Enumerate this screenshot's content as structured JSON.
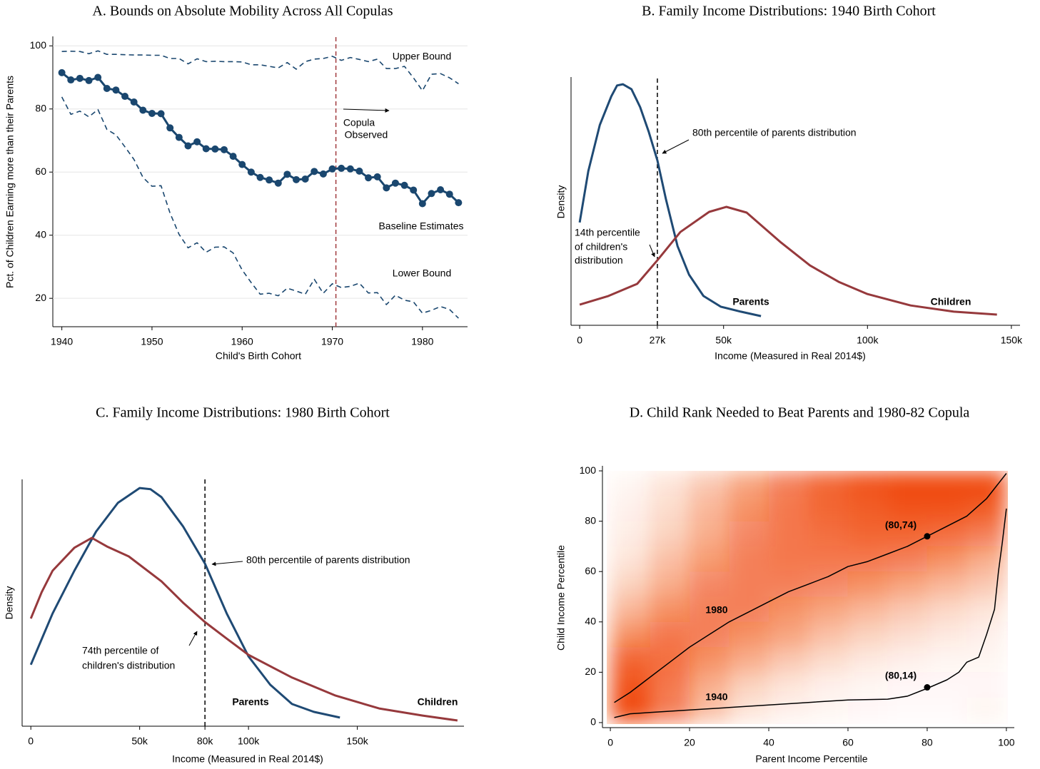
{
  "chart_data": [
    {
      "type": "line",
      "title": "A. Bounds on Absolute Mobility Across All Copulas",
      "x_label": "Child's Birth Cohort",
      "y_label": "Pct. of Children Earning more than their Parents",
      "x": [
        1940,
        1941,
        1942,
        1943,
        1944,
        1945,
        1946,
        1947,
        1948,
        1949,
        1950,
        1951,
        1952,
        1953,
        1954,
        1955,
        1956,
        1957,
        1958,
        1959,
        1960,
        1961,
        1962,
        1963,
        1964,
        1965,
        1966,
        1967,
        1968,
        1969,
        1970,
        1971,
        1972,
        1973,
        1974,
        1975,
        1976,
        1977,
        1978,
        1979,
        1980,
        1981,
        1982,
        1983,
        1984
      ],
      "series": [
        {
          "name": "Upper Bound",
          "color": "#1a476f",
          "line_style": "dashed",
          "values": [
            98.2,
            98.3,
            98.2,
            97.5,
            98.4,
            97.3,
            97.3,
            97.2,
            97.1,
            97.1,
            97.0,
            97.0,
            96.0,
            96.0,
            94.3,
            95.9,
            95.0,
            95.1,
            95.0,
            95.0,
            94.9,
            94.0,
            94.0,
            93.5,
            93.0,
            94.7,
            92.6,
            95.0,
            95.8,
            96.0,
            96.7,
            95.4,
            96.3,
            95.7,
            95.0,
            95.8,
            92.8,
            92.8,
            93.5,
            89.9,
            85.8,
            91.0,
            91.2,
            89.9,
            88.0
          ]
        },
        {
          "name": "Baseline Estimates",
          "color": "#1a476f",
          "line_style": "solid",
          "marker": true,
          "values": [
            91.5,
            89.2,
            89.7,
            89.0,
            90.0,
            86.5,
            86.0,
            84.0,
            82.2,
            79.6,
            78.6,
            78.5,
            74.0,
            71.0,
            68.3,
            69.6,
            67.4,
            67.3,
            67.1,
            65.0,
            62.4,
            60.0,
            58.3,
            57.5,
            56.5,
            59.3,
            57.6,
            57.8,
            60.2,
            59.4,
            61.0,
            61.2,
            61.0,
            60.3,
            58.2,
            58.5,
            55.0,
            56.5,
            55.8,
            54.3,
            50.0,
            53.2,
            54.4,
            53.0,
            50.3
          ]
        },
        {
          "name": "Lower Bound",
          "color": "#1a476f",
          "line_style": "dashed",
          "values": [
            83.8,
            78.3,
            79.3,
            77.5,
            79.8,
            73.5,
            71.8,
            68.0,
            64.0,
            58.3,
            55.5,
            55.7,
            47.0,
            40.3,
            36.0,
            37.6,
            34.6,
            36.2,
            36.3,
            34.4,
            29.0,
            25.0,
            21.3,
            21.6,
            20.8,
            23.2,
            22.3,
            21.3,
            26.0,
            21.6,
            24.6,
            23.4,
            23.8,
            24.8,
            21.7,
            21.8,
            18.0,
            21.0,
            19.4,
            18.9,
            15.3,
            16.2,
            17.4,
            16.5,
            13.7
          ]
        }
      ],
      "xlim": [
        1939,
        1985
      ],
      "ylim": [
        11,
        103
      ],
      "xticks": [
        1940,
        1950,
        1960,
        1970,
        1980
      ],
      "yticks": [
        20,
        40,
        60,
        80,
        100
      ],
      "grid": true,
      "vline": 1970.4,
      "vline_color": "#a0393c",
      "annotations": [
        "Copula",
        "Observed"
      ]
    },
    {
      "type": "line",
      "title": "B. Family Income Distributions: 1940 Birth Cohort",
      "x_label": "Income (Measured in Real 2014$)",
      "y_label": "Density",
      "series": [
        {
          "name": "Parents",
          "color": "#1f4a74",
          "line_style": "solid",
          "x": [
            0,
            3,
            7,
            11,
            13,
            15,
            18,
            21,
            24,
            27,
            30,
            34,
            38,
            43,
            49,
            56,
            63
          ],
          "values": [
            41.4,
            62.1,
            80.7,
            92.2,
            96.6,
            97.1,
            95.1,
            87.9,
            77.9,
            66.4,
            50.6,
            31.9,
            20.4,
            11.8,
            7.5,
            5.5,
            3.7
          ]
        },
        {
          "name": "Children",
          "color": "#96393c",
          "line_style": "solid",
          "x": [
            0,
            10,
            20,
            27,
            35,
            45,
            51,
            58,
            70,
            80,
            90,
            100,
            115,
            130,
            145
          ],
          "values": [
            8.3,
            11.8,
            16.7,
            26.2,
            37.6,
            45.7,
            47.7,
            45.4,
            33.3,
            24.1,
            17.5,
            12.6,
            8.0,
            5.5,
            4.3
          ]
        }
      ],
      "xlim": [
        -3,
        153
      ],
      "ylim": [
        0,
        100
      ],
      "xticks": [
        0,
        {
          "value": 27,
          "label": "27k"
        },
        {
          "value": 50,
          "label": "50k"
        },
        {
          "value": 100,
          "label": "100k"
        },
        {
          "value": 150,
          "label": "150k"
        }
      ],
      "grid": false,
      "vline": 27,
      "vline_color": "#000000",
      "annotations": [
        "80th percentile of parents distribution",
        "14th percentile",
        "of children's",
        "distribution"
      ]
    },
    {
      "type": "line",
      "title": "C. Family Income Distributions: 1980 Birth Cohort",
      "x_label": "Income (Measured in Real 2014$)",
      "y_label": "Density",
      "series": [
        {
          "name": "Parents",
          "color": "#1f4a74",
          "line_style": "solid",
          "x": [
            0,
            10,
            20,
            30,
            40,
            50,
            55,
            60,
            70,
            80,
            90,
            100,
            110,
            120,
            130,
            142
          ],
          "values": [
            24.9,
            45.7,
            63.0,
            78.9,
            90.5,
            96.5,
            96.0,
            92.8,
            80.9,
            65.9,
            45.7,
            28.3,
            16.8,
            9.0,
            5.8,
            3.5
          ]
        },
        {
          "name": "Children",
          "color": "#96393c",
          "line_style": "solid",
          "x": [
            0,
            5,
            10,
            20,
            28,
            35,
            45,
            60,
            70,
            80,
            90,
            100,
            120,
            140,
            160,
            180,
            196
          ],
          "values": [
            43.6,
            54.3,
            63.0,
            72.3,
            76.3,
            72.8,
            68.8,
            58.7,
            50.0,
            42.2,
            35.5,
            28.9,
            19.7,
            12.4,
            7.2,
            4.3,
            2.3
          ]
        }
      ],
      "xlim": [
        -4,
        199
      ],
      "ylim": [
        0,
        100
      ],
      "xticks": [
        0,
        {
          "value": 50,
          "label": "50k"
        },
        {
          "value": 80,
          "label": "80k"
        },
        {
          "value": 100,
          "label": "100k"
        },
        {
          "value": 150,
          "label": "150k"
        }
      ],
      "grid": false,
      "vline": 80,
      "vline_color": "#000000",
      "annotations": [
        "80th percentile of parents distribution",
        "74th percentile of",
        "children's distribution"
      ]
    },
    {
      "type": "heatmap",
      "title": "D. Child Rank Needed to Beat Parents and 1980-82 Copula",
      "x_label": "Parent Income Percentile",
      "y_label": "Child Income Percentile",
      "color": "#f04a0a",
      "bins": [
        0,
        10,
        20,
        30,
        40,
        50,
        60,
        70,
        80,
        90,
        100
      ],
      "z": [
        [
          100,
          70,
          35,
          15,
          8,
          5,
          3,
          2,
          2,
          5
        ],
        [
          95,
          75,
          45,
          25,
          15,
          8,
          5,
          3,
          3,
          3
        ],
        [
          85,
          80,
          60,
          45,
          30,
          20,
          12,
          8,
          5,
          5
        ],
        [
          60,
          75,
          70,
          60,
          50,
          35,
          25,
          18,
          12,
          8
        ],
        [
          40,
          60,
          70,
          70,
          60,
          50,
          40,
          30,
          22,
          15
        ],
        [
          25,
          45,
          65,
          70,
          70,
          65,
          60,
          50,
          40,
          30
        ],
        [
          15,
          35,
          55,
          70,
          75,
          75,
          75,
          70,
          60,
          45
        ],
        [
          10,
          25,
          45,
          65,
          75,
          80,
          85,
          85,
          80,
          70
        ],
        [
          8,
          20,
          40,
          60,
          75,
          85,
          90,
          95,
          95,
          90
        ],
        [
          5,
          15,
          30,
          50,
          70,
          85,
          95,
          100,
          100,
          100
        ]
      ],
      "series": [
        {
          "name": "1980",
          "color": "#000000",
          "line_style": "solid",
          "x": [
            1,
            5,
            10,
            15,
            20,
            25,
            30,
            35,
            40,
            45,
            50,
            55,
            60,
            65,
            70,
            75,
            80,
            85,
            90,
            95,
            100
          ],
          "values": [
            8,
            12,
            18,
            24,
            30,
            35,
            40,
            44,
            48,
            52,
            55,
            58,
            62,
            64,
            67,
            70,
            74,
            78,
            82,
            89,
            99
          ]
        },
        {
          "name": "1940",
          "color": "#000000",
          "line_style": "solid",
          "x": [
            1,
            5,
            10,
            20,
            30,
            40,
            50,
            60,
            70,
            75,
            80,
            85,
            88,
            90,
            93,
            95,
            97,
            98,
            99,
            100
          ],
          "values": [
            2,
            3.5,
            4,
            5,
            6,
            7,
            8,
            9,
            9.3,
            10.5,
            13.6,
            17,
            20,
            24,
            26,
            35,
            45,
            60,
            72,
            85
          ]
        }
      ],
      "highlights": [
        {
          "x": 80,
          "y": 74,
          "label": "(80,74)"
        },
        {
          "x": 80,
          "y": 14,
          "label": "(80,14)"
        }
      ],
      "xlim": [
        -2,
        102
      ],
      "ylim": [
        -2,
        102
      ],
      "xticks": [
        0,
        20,
        40,
        60,
        80,
        100
      ],
      "yticks": [
        0,
        20,
        40,
        60,
        80,
        100
      ],
      "grid": false
    }
  ]
}
